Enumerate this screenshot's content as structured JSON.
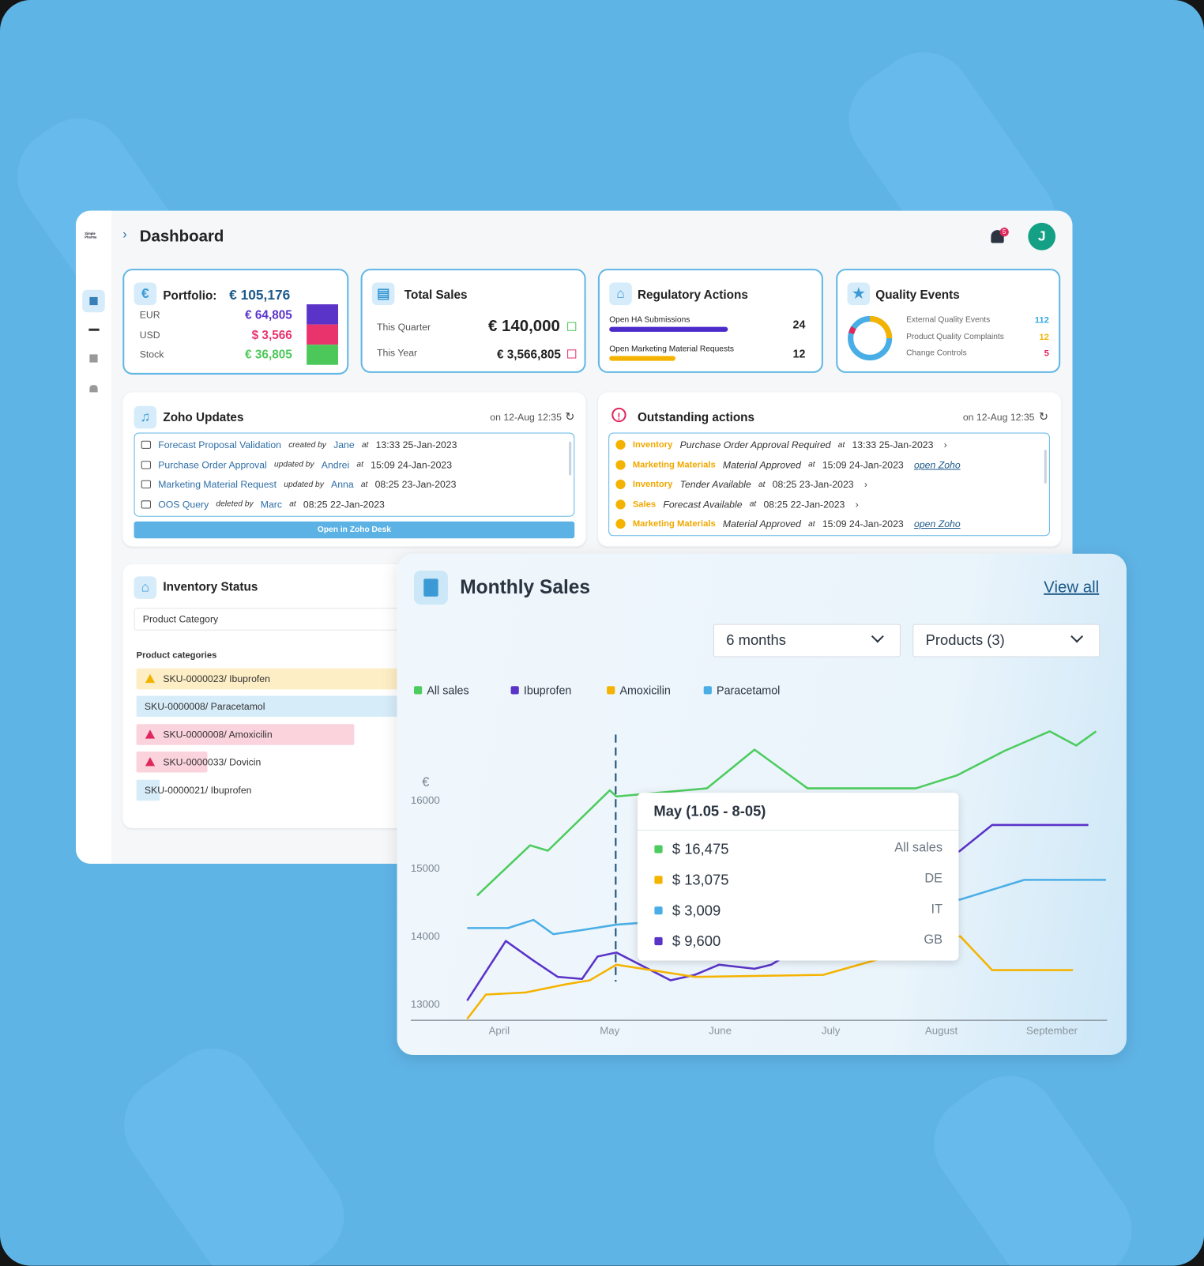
{
  "brand": "Simple Pharma",
  "header": {
    "title": "Dashboard",
    "notification_count": "5",
    "avatar": "J"
  },
  "portfolio": {
    "title": "Portfolio:",
    "total": "€ 105,176",
    "rows": [
      {
        "label": "EUR",
        "value": "€ 64,805",
        "color": "#5a34c8"
      },
      {
        "label": "USD",
        "value": "$ 3,566",
        "color": "#e8336d"
      },
      {
        "label": "Stock",
        "value": "€ 36,805",
        "color": "#4cc85a"
      }
    ]
  },
  "total_sales": {
    "title": "Total Sales",
    "rows": [
      {
        "label": "This Quarter",
        "value": "€ 140,000"
      },
      {
        "label": "This Year",
        "value": "€ 3,566,805"
      }
    ]
  },
  "regulatory": {
    "title": "Regulatory Actions",
    "rows": [
      {
        "label": "Open HA Submissions",
        "value": 24,
        "color": "#4b2bc9"
      },
      {
        "label": "Open Marketing Material Requests",
        "value": 12,
        "color": "#f5b301"
      }
    ]
  },
  "quality": {
    "title": "Quality Events",
    "rows": [
      {
        "label": "External Quality Events",
        "value": 112,
        "color": "#37a8e4"
      },
      {
        "label": "Product Quality Complaints",
        "value": 12,
        "color": "#f0b400"
      },
      {
        "label": "Change Controls",
        "value": 5,
        "color": "#e0285c"
      }
    ]
  },
  "zoho": {
    "title": "Zoho Updates",
    "timestamp": "on 12-Aug 12:35",
    "button": "Open in Zoho Desk",
    "items": [
      {
        "name": "Forecast Proposal Validation",
        "action": "created by",
        "user": "Jane",
        "at": "at",
        "time": "13:33 25-Jan-2023"
      },
      {
        "name": "Purchase Order Approval",
        "action": "updated by",
        "user": "Andrei",
        "at": "at",
        "time": "15:09 24-Jan-2023"
      },
      {
        "name": "Marketing Material Request",
        "action": "updated by",
        "user": "Anna",
        "at": "at",
        "time": "08:25 23-Jan-2023"
      },
      {
        "name": "OOS Query",
        "action": "deleted by",
        "user": "Marc",
        "at": "at",
        "time": "08:25 22-Jan-2023"
      }
    ]
  },
  "outstanding": {
    "title": "Outstanding actions",
    "timestamp": "on 12-Aug 12:35",
    "items": [
      {
        "category": "Inventory",
        "text": "Purchase Order Approval Required",
        "at": "at",
        "time": "13:33 25-Jan-2023"
      },
      {
        "category": "Marketing Materials",
        "text": "Material Approved",
        "at": "at",
        "time": "15:09 24-Jan-2023",
        "link": "open Zoho"
      },
      {
        "category": "Inventory",
        "text": "Tender Available",
        "at": "at",
        "time": "08:25 23-Jan-2023"
      },
      {
        "category": "Sales",
        "text": "Forecast Available",
        "at": "at",
        "time": "08:25 22-Jan-2023"
      },
      {
        "category": "Marketing Materials",
        "text": "Material Approved",
        "at": "at",
        "time": "15:09 24-Jan-2023",
        "link": "open Zoho"
      }
    ]
  },
  "inventory": {
    "title": "Inventory Status",
    "filter": "Product Category",
    "section": "Product categories",
    "items": [
      {
        "label": "SKU-0000023/ Ibuprofen",
        "color": "#fdeec5"
      },
      {
        "label": "SKU-0000008/ Paracetamol",
        "color": "#d6ecf9"
      },
      {
        "label": "SKU-0000008/ Amoxicilin",
        "color": "#fbd3dd"
      },
      {
        "label": "SKU-0000033/ Dovicin",
        "color": "#fbd3dd"
      },
      {
        "label": "SKU-0000021/ Ibuprofen",
        "color": "#d6ecf9"
      }
    ]
  },
  "chart_data": {
    "type": "line",
    "title": "Monthly Sales",
    "link": "View all",
    "filters": [
      "6 months",
      "Products (3)"
    ],
    "y_unit": "€",
    "xlim": [
      3.2,
      9.5
    ],
    "xticks": [
      {
        "value": 4,
        "label": "April"
      },
      {
        "value": 5,
        "label": "May"
      },
      {
        "value": 6,
        "label": "June"
      },
      {
        "value": 7,
        "label": "July"
      },
      {
        "value": 8,
        "label": "August"
      },
      {
        "value": 9,
        "label": "September"
      }
    ],
    "ylim": [
      12750,
      17200
    ],
    "yticks": [
      13000,
      14000,
      15000,
      16000
    ],
    "series": [
      {
        "name": "All sales",
        "color": "#4ccc5e",
        "x": [
          3.8,
          4.28,
          4.44,
          5.0,
          5.06,
          5.88,
          6.31,
          6.79,
          7.77,
          8.14,
          8.57,
          8.98,
          9.22,
          9.4
        ],
        "values": [
          14590,
          15330,
          15250,
          16140,
          16050,
          16170,
          16740,
          16170,
          16170,
          16360,
          16720,
          17010,
          16800,
          17010
        ]
      },
      {
        "name": "Ibuprofen",
        "color": "#5a33c9",
        "x": [
          3.71,
          4.06,
          4.31,
          4.53,
          4.75,
          4.89,
          5.06,
          5.55,
          5.77,
          5.99,
          6.31,
          6.46,
          8.17,
          8.46,
          9.33
        ],
        "values": [
          13040,
          13920,
          13630,
          13390,
          13360,
          13690,
          13750,
          13340,
          13420,
          13570,
          13510,
          13570,
          15250,
          15630,
          15630
        ]
      },
      {
        "name": "Amoxicilin",
        "color": "#f5b301",
        "x": [
          3.71,
          3.88,
          4.24,
          4.6,
          4.82,
          5.06,
          5.77,
          6.93,
          8.17,
          8.46,
          9.19
        ],
        "values": [
          12770,
          13130,
          13160,
          13280,
          13340,
          13570,
          13390,
          13420,
          13990,
          13490,
          13490
        ]
      },
      {
        "name": "Paracetamol",
        "color": "#4aaee6",
        "x": [
          3.71,
          4.08,
          4.31,
          4.49,
          4.75,
          5.06,
          8.17,
          8.75,
          9.49
        ],
        "values": [
          14110,
          14110,
          14230,
          14020,
          14080,
          14160,
          14530,
          14820,
          14820
        ]
      }
    ],
    "tooltip": {
      "title": "May (1.05 - 8-05)",
      "rows": [
        {
          "value": "$ 16,475",
          "label": "All sales",
          "color": "#4ccc5e"
        },
        {
          "value": "$ 13,075",
          "label": "DE",
          "color": "#f5b301"
        },
        {
          "value": "$ 3,009",
          "label": "IT",
          "color": "#4aaee6"
        },
        {
          "value": "$ 9,600",
          "label": "GB",
          "color": "#5a33c9"
        }
      ]
    }
  }
}
